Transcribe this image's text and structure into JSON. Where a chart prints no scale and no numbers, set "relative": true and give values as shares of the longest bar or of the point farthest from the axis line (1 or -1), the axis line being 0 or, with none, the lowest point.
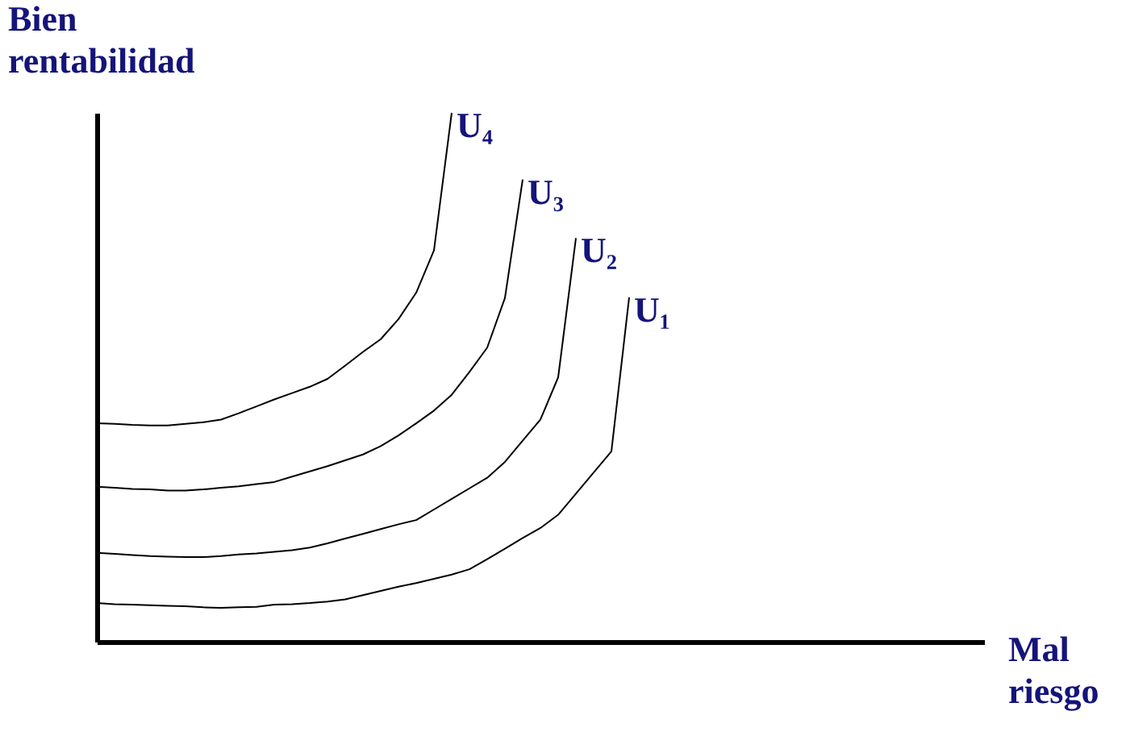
{
  "chart_data": {
    "type": "line",
    "relative": true,
    "xlabel": "Mal riesgo",
    "ylabel": "Bien rentabilidad",
    "marker": "none",
    "line_style": "solid",
    "categories": [
      null,
      null,
      null,
      null,
      null,
      null,
      null,
      null,
      null,
      null,
      null,
      null,
      null,
      null,
      null,
      null,
      null,
      null,
      null,
      null,
      null,
      null,
      null,
      null,
      null,
      null,
      null,
      null,
      null,
      null,
      null,
      null,
      null,
      null,
      null,
      null,
      null,
      null,
      null,
      null,
      null,
      null,
      null,
      null,
      null,
      null,
      null,
      null,
      null,
      null
    ],
    "series": [
      {
        "name": "U₄",
        "color": "#000000",
        "values": [
          0.413,
          0.412,
          0.41,
          0.409,
          0.409,
          0.412,
          0.415,
          0.42,
          0.432,
          0.445,
          0.458,
          0.47,
          0.482,
          0.497,
          0.522,
          0.548,
          0.572,
          0.61,
          0.66,
          0.74,
          1.0,
          null,
          null,
          null,
          null,
          null,
          null,
          null,
          null,
          null,
          null,
          null,
          null,
          null,
          null,
          null,
          null,
          null,
          null,
          null,
          null,
          null,
          null,
          null,
          null,
          null,
          null,
          null,
          null,
          null
        ]
      },
      {
        "name": "U₃",
        "color": "#000000",
        "values": [
          0.293,
          0.291,
          0.289,
          0.288,
          0.286,
          0.286,
          0.288,
          0.291,
          0.294,
          0.298,
          0.302,
          0.312,
          0.322,
          0.332,
          0.343,
          0.354,
          0.37,
          0.39,
          0.413,
          0.437,
          0.467,
          0.51,
          0.556,
          0.65,
          0.874,
          null,
          null,
          null,
          null,
          null,
          null,
          null,
          null,
          null,
          null,
          null,
          null,
          null,
          null,
          null,
          null,
          null,
          null,
          null,
          null,
          null,
          null,
          null,
          null,
          null
        ]
      },
      {
        "name": "U₂",
        "color": "#000000",
        "values": [
          0.168,
          0.166,
          0.164,
          0.162,
          0.161,
          0.16,
          0.16,
          0.162,
          0.165,
          0.167,
          0.17,
          0.173,
          0.178,
          0.186,
          0.195,
          0.204,
          0.213,
          0.222,
          0.23,
          0.25,
          0.27,
          0.29,
          0.31,
          0.34,
          0.38,
          0.42,
          0.5,
          0.763,
          null,
          null,
          null,
          null,
          null,
          null,
          null,
          null,
          null,
          null,
          null,
          null,
          null,
          null,
          null,
          null,
          null,
          null,
          null,
          null,
          null,
          null
        ]
      },
      {
        "name": "U₁",
        "color": "#000000",
        "values": [
          0.073,
          0.071,
          0.07,
          0.069,
          0.068,
          0.067,
          0.065,
          0.064,
          0.065,
          0.066,
          0.07,
          0.071,
          0.073,
          0.076,
          0.08,
          0.088,
          0.096,
          0.104,
          0.111,
          0.119,
          0.127,
          0.137,
          0.156,
          0.176,
          0.196,
          0.215,
          0.24,
          0.28,
          0.32,
          0.36,
          0.651,
          null,
          null,
          null,
          null,
          null,
          null,
          null,
          null,
          null,
          null,
          null,
          null,
          null,
          null,
          null,
          null,
          null,
          null,
          null
        ]
      }
    ]
  }
}
